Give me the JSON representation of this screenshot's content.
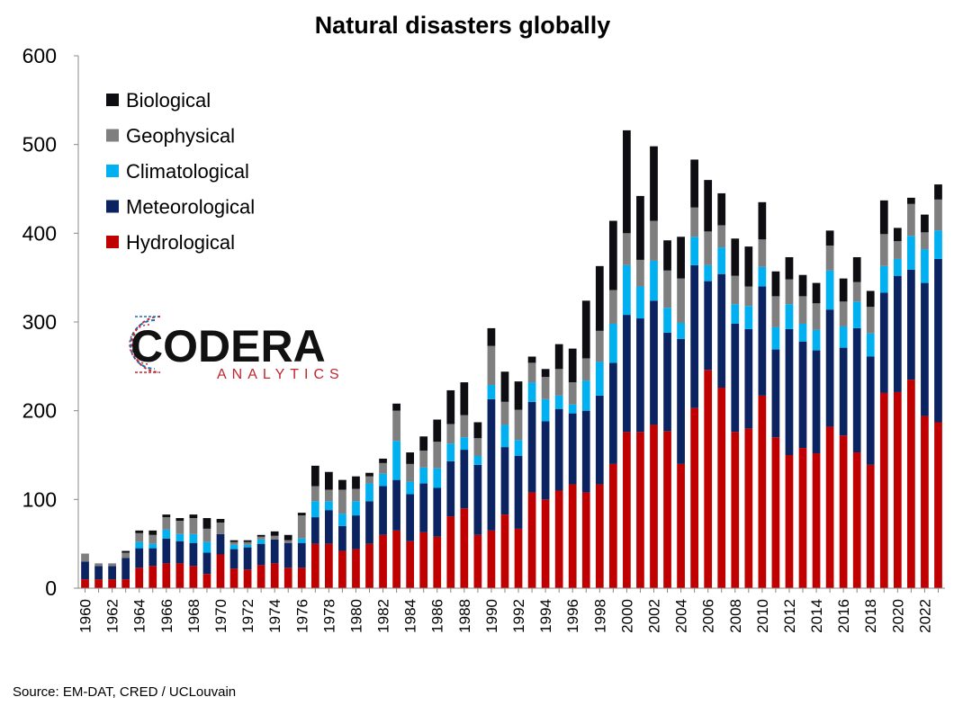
{
  "source": "Source: EM-DAT, CRED / UCLouvain",
  "logo": {
    "name": "CODERA",
    "sub": "ANALYTICS",
    "color_dark": "#111111",
    "color_red": "#c0272d",
    "color_blue": "#1f6fb5"
  },
  "chart_data": {
    "type": "bar",
    "stacked": true,
    "title": "Natural disasters globally",
    "xlabel": "",
    "ylabel": "",
    "ylim": [
      0,
      600
    ],
    "yticks": [
      0,
      100,
      200,
      300,
      400,
      500,
      600
    ],
    "grid": false,
    "legend_position": "top-left",
    "categories": [
      "1960",
      "1961",
      "1962",
      "1963",
      "1964",
      "1965",
      "1966",
      "1967",
      "1968",
      "1969",
      "1970",
      "1971",
      "1972",
      "1973",
      "1974",
      "1975",
      "1976",
      "1977",
      "1978",
      "1979",
      "1980",
      "1981",
      "1982",
      "1983",
      "1984",
      "1985",
      "1986",
      "1987",
      "1988",
      "1989",
      "1990",
      "1991",
      "1992",
      "1993",
      "1994",
      "1995",
      "1996",
      "1997",
      "1998",
      "1999",
      "2000",
      "2001",
      "2002",
      "2003",
      "2004",
      "2005",
      "2006",
      "2007",
      "2008",
      "2009",
      "2010",
      "2011",
      "2012",
      "2013",
      "2014",
      "2015",
      "2016",
      "2017",
      "2018",
      "2019",
      "2020",
      "2021",
      "2022",
      "2023"
    ],
    "xtick_labels": [
      "1960",
      "",
      "1962",
      "",
      "1964",
      "",
      "1966",
      "",
      "1968",
      "",
      "1970",
      "",
      "1972",
      "",
      "1974",
      "",
      "1976",
      "",
      "1978",
      "",
      "1980",
      "",
      "1982",
      "",
      "1984",
      "",
      "1986",
      "",
      "1988",
      "",
      "1990",
      "",
      "1992",
      "",
      "1994",
      "",
      "1996",
      "",
      "1998",
      "",
      "2000",
      "",
      "2002",
      "",
      "2004",
      "",
      "2006",
      "",
      "2008",
      "",
      "2010",
      "",
      "2012",
      "",
      "2014",
      "",
      "2016",
      "",
      "2018",
      "",
      "2020",
      "",
      "2022",
      ""
    ],
    "series": [
      {
        "name": "Hydrological",
        "color": "#c00000",
        "values": [
          10,
          10,
          10,
          10,
          23,
          25,
          28,
          28,
          25,
          16,
          38,
          22,
          21,
          26,
          28,
          23,
          23,
          50,
          50,
          42,
          44,
          50,
          60,
          65,
          53,
          63,
          58,
          81,
          90,
          60,
          65,
          83,
          67,
          108,
          100,
          110,
          117,
          108,
          117,
          140,
          176,
          176,
          184,
          177,
          140,
          203,
          246,
          226,
          176,
          180,
          217,
          170,
          150,
          158,
          152,
          182,
          172,
          153,
          139,
          220,
          221,
          235,
          194,
          187
        ]
      },
      {
        "name": "Meteorological",
        "color": "#0b2361",
        "values": [
          20,
          15,
          15,
          24,
          22,
          20,
          28,
          25,
          26,
          24,
          23,
          22,
          25,
          24,
          27,
          28,
          28,
          30,
          38,
          28,
          38,
          48,
          55,
          57,
          53,
          55,
          55,
          62,
          66,
          79,
          148,
          76,
          82,
          102,
          88,
          92,
          80,
          92,
          100,
          114,
          132,
          128,
          140,
          111,
          141,
          161,
          100,
          128,
          122,
          112,
          123,
          99,
          142,
          120,
          116,
          132,
          99,
          140,
          122,
          113,
          131,
          124,
          150,
          184
        ]
      },
      {
        "name": "Climatological",
        "color": "#00b0f0",
        "values": [
          0,
          0,
          0,
          0,
          7,
          5,
          10,
          8,
          10,
          12,
          0,
          5,
          3,
          5,
          0,
          0,
          5,
          18,
          10,
          14,
          16,
          20,
          14,
          44,
          14,
          18,
          22,
          20,
          14,
          10,
          16,
          25,
          18,
          22,
          25,
          15,
          10,
          34,
          38,
          44,
          56,
          36,
          45,
          28,
          18,
          32,
          18,
          30,
          22,
          26,
          22,
          25,
          28,
          20,
          23,
          44,
          24,
          30,
          26,
          30,
          19,
          38,
          38,
          32
        ]
      },
      {
        "name": "Geophysical",
        "color": "#7f7f7f",
        "values": [
          9,
          3,
          3,
          6,
          10,
          10,
          14,
          15,
          18,
          15,
          13,
          3,
          3,
          3,
          4,
          3,
          26,
          17,
          13,
          27,
          14,
          8,
          12,
          34,
          20,
          19,
          30,
          22,
          25,
          20,
          44,
          26,
          34,
          22,
          25,
          30,
          25,
          25,
          35,
          38,
          36,
          30,
          45,
          42,
          50,
          33,
          38,
          25,
          32,
          22,
          31,
          35,
          28,
          31,
          30,
          28,
          28,
          22,
          30,
          36,
          20,
          36,
          19,
          35
        ]
      },
      {
        "name": "Biological",
        "color": "#0d0d12",
        "values": [
          0,
          0,
          0,
          2,
          3,
          5,
          3,
          3,
          4,
          12,
          4,
          2,
          2,
          2,
          5,
          6,
          3,
          23,
          20,
          11,
          14,
          4,
          5,
          8,
          13,
          16,
          25,
          38,
          37,
          18,
          20,
          34,
          32,
          7,
          9,
          28,
          38,
          65,
          73,
          78,
          116,
          72,
          84,
          34,
          47,
          54,
          58,
          36,
          42,
          45,
          42,
          28,
          25,
          24,
          23,
          17,
          26,
          28,
          18,
          38,
          15,
          7,
          20,
          17
        ]
      }
    ]
  }
}
